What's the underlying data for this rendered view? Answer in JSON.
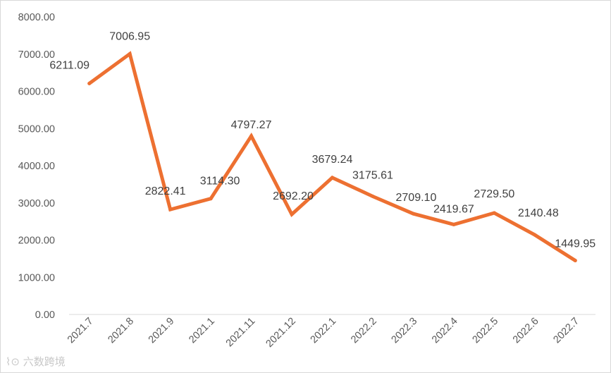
{
  "chart_data": {
    "type": "line",
    "title": "",
    "xlabel": "",
    "ylabel": "",
    "categories": [
      "2021.7",
      "2021.8",
      "2021.9",
      "2021.1",
      "2021.11",
      "2021.12",
      "2022.1",
      "2022.2",
      "2022.3",
      "2022.4",
      "2022.5",
      "2022.6",
      "2022.7"
    ],
    "series": [
      {
        "values": [
          6211.09,
          7006.95,
          2822.41,
          3114.3,
          4797.27,
          2692.2,
          3679.24,
          3175.61,
          2709.1,
          2419.67,
          2729.5,
          2140.48,
          1449.95
        ]
      }
    ],
    "data_labels": [
      "6211.09",
      "7006.95",
      "2822.41",
      "3114.30",
      "4797.27",
      "2692.20",
      "3679.24",
      "3175.61",
      "2709.10",
      "2419.67",
      "2729.50",
      "2140.48",
      "1449.95"
    ],
    "y_ticks": [
      "0.00",
      "1000.00",
      "2000.00",
      "3000.00",
      "4000.00",
      "5000.00",
      "6000.00",
      "7000.00",
      "8000.00"
    ],
    "ylim": [
      0,
      8000
    ],
    "grid": false,
    "legend": "none",
    "line_color": "#ED7031"
  },
  "watermark": {
    "text": "六数跨境",
    "icon": "liuxu-logo-icon"
  }
}
